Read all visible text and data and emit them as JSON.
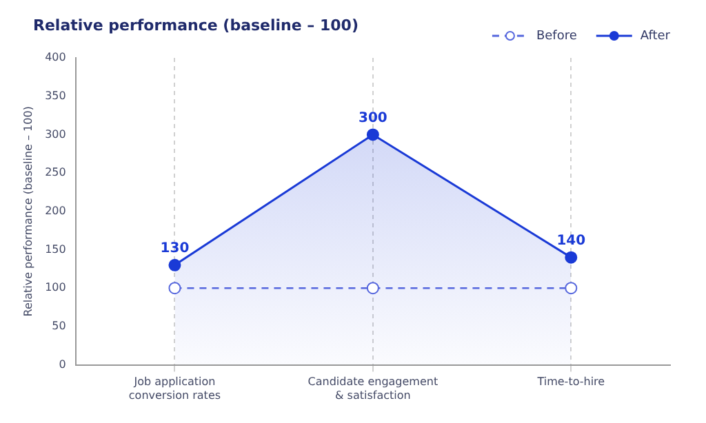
{
  "chart_data": {
    "type": "line",
    "title": "Relative performance (baseline – 100)",
    "ylabel": "Relative performance (baseline – 100)",
    "categories": [
      "Job application conversion rates",
      "Candidate engagement & satisfaction",
      "Time-to-hire"
    ],
    "series": [
      {
        "name": "Before",
        "color": "#5566dd",
        "values": [
          100,
          100,
          100
        ],
        "line_style": "dashed",
        "marker": "circle"
      },
      {
        "name": "After",
        "type": "area",
        "color": "#1a3ad6",
        "values": [
          130,
          300,
          140
        ],
        "line_style": "solid",
        "marker": "circle",
        "value_labels": [
          "130",
          "300",
          "140"
        ]
      }
    ],
    "ylim": [
      0,
      400
    ],
    "yticks": [
      0,
      50,
      100,
      150,
      200,
      250,
      300,
      350,
      400
    ],
    "grid": "x",
    "legend": "top right"
  }
}
